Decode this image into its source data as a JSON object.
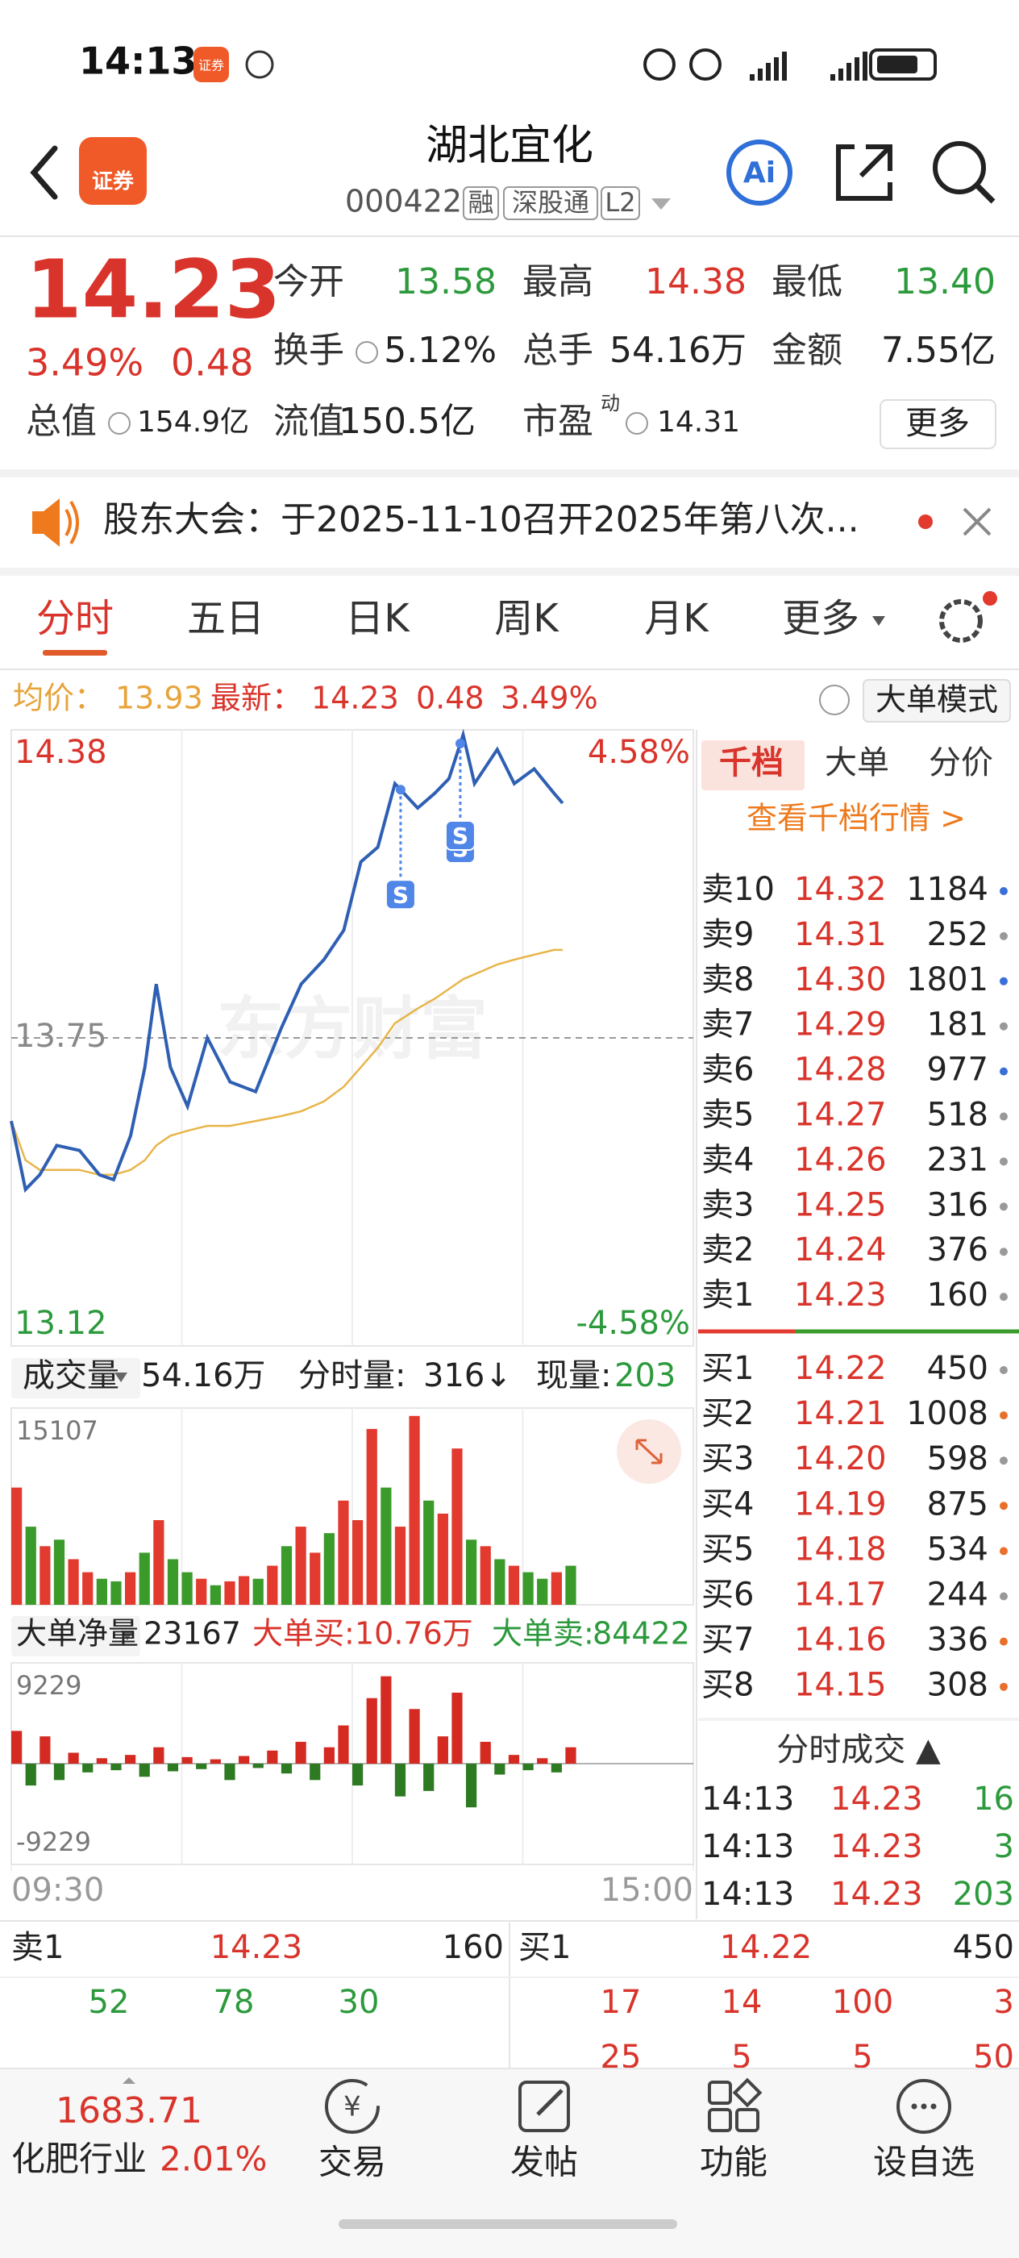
{
  "status_bar": {
    "time": "14:13",
    "app": "证券"
  },
  "header": {
    "title": "湖北宜化",
    "code": "000422",
    "tags": [
      "融",
      "深股通",
      "L2"
    ],
    "app_icon": "证券",
    "ai": "Ai"
  },
  "quote": {
    "price": "14.23",
    "change_pct": "3.49%",
    "change": "0.48",
    "fields": [
      {
        "label": "今开",
        "value": "13.58"
      },
      {
        "label": "最高",
        "value": "14.38"
      },
      {
        "label": "最低",
        "value": "13.40"
      },
      {
        "label": "换手",
        "value": "5.12%"
      },
      {
        "label": "总手",
        "value": "54.16万"
      },
      {
        "label": "金额",
        "value": "7.55亿"
      },
      {
        "label": "总值",
        "value": "154.9亿"
      },
      {
        "label": "流值",
        "value": "150.5亿"
      },
      {
        "label": "市盈",
        "sup": "动",
        "value": "14.31"
      }
    ],
    "more": "更多"
  },
  "notice": "股东大会：于2025-11-10召开2025年第八次...",
  "tabs": [
    "分时",
    "五日",
    "日K",
    "周K",
    "月K",
    "更多"
  ],
  "info": {
    "avg_label": "均价：",
    "avg": "13.93",
    "last_label": "最新：",
    "last": "14.23",
    "change": "0.48",
    "change_pct": "3.49%",
    "mode": "大单模式"
  },
  "chart_data": [
    {
      "type": "line",
      "watermark": "东方财富",
      "xlim": [
        0,
        240
      ],
      "ylim": [
        13.12,
        14.38
      ],
      "yticks": [
        13.12,
        13.75,
        14.38
      ],
      "y2lim": [
        -4.58,
        4.58
      ],
      "y2ticks": [
        {
          "value": -4.58,
          "label": "-4.58%"
        },
        {
          "value": 4.58,
          "label": "4.58%"
        }
      ],
      "xticks": [
        {
          "value": 0,
          "label": "09:30"
        },
        {
          "value": 240,
          "label": "15:00"
        }
      ],
      "series": [
        {
          "color": "#2f5fb3",
          "x": [
            0,
            5,
            10,
            16,
            24,
            31,
            36,
            42,
            47,
            51,
            56,
            62,
            69,
            77,
            86,
            95,
            102,
            110,
            117,
            123,
            129,
            135,
            143,
            149,
            154,
            159,
            163,
            171,
            177,
            184,
            191,
            194
          ],
          "values": [
            13.58,
            13.44,
            13.47,
            13.53,
            13.52,
            13.47,
            13.46,
            13.55,
            13.69,
            13.86,
            13.69,
            13.61,
            13.75,
            13.66,
            13.64,
            13.77,
            13.86,
            13.91,
            13.97,
            14.11,
            14.14,
            14.27,
            14.22,
            14.25,
            14.28,
            14.37,
            14.27,
            14.34,
            14.27,
            14.3,
            14.25,
            14.23
          ]
        },
        {
          "color": "#e8b54a",
          "x": [
            0,
            5,
            10,
            16,
            24,
            31,
            36,
            42,
            47,
            51,
            56,
            62,
            69,
            77,
            86,
            95,
            102,
            110,
            117,
            123,
            129,
            135,
            143,
            149,
            154,
            159,
            163,
            171,
            177,
            184,
            191,
            194
          ],
          "values": [
            13.58,
            13.5,
            13.48,
            13.48,
            13.48,
            13.47,
            13.47,
            13.48,
            13.5,
            13.53,
            13.55,
            13.56,
            13.57,
            13.57,
            13.58,
            13.59,
            13.6,
            13.62,
            13.65,
            13.69,
            13.73,
            13.78,
            13.81,
            13.83,
            13.85,
            13.87,
            13.88,
            13.9,
            13.91,
            13.92,
            13.93,
            13.93
          ]
        }
      ],
      "annotations": [
        {
          "x": 137,
          "label": "S"
        },
        {
          "x": 158,
          "label": "S"
        },
        {
          "x": 158,
          "label": "S"
        }
      ]
    },
    {
      "type": "bar",
      "xlim": [
        0,
        240
      ],
      "ylim": [
        0,
        15107
      ],
      "yticks": [
        15107
      ],
      "x": [
        0,
        5,
        10,
        15,
        20,
        25,
        30,
        35,
        40,
        45,
        50,
        55,
        60,
        65,
        70,
        75,
        80,
        85,
        90,
        95,
        100,
        105,
        110,
        115,
        120,
        125,
        130,
        135,
        140,
        145,
        150,
        155,
        160,
        165,
        170,
        175,
        180,
        185,
        190,
        195
      ],
      "values": [
        9000,
        6000,
        4500,
        5000,
        3500,
        2500,
        2000,
        1800,
        2500,
        4000,
        6500,
        3500,
        2500,
        2000,
        1500,
        1800,
        2200,
        2000,
        3000,
        4500,
        6000,
        4000,
        5500,
        8000,
        6500,
        13500,
        9000,
        6000,
        14500,
        8000,
        7000,
        12000,
        5000,
        4500,
        3500,
        3000,
        2500,
        2000,
        2500,
        3000
      ],
      "colors": [
        "#e23a2e",
        "#3a9a2a",
        "#e23a2e",
        "#3a9a2a",
        "#e23a2e",
        "#e23a2e",
        "#3a9a2a",
        "#3a9a2a",
        "#e23a2e",
        "#3a9a2a",
        "#e23a2e",
        "#3a9a2a",
        "#3a9a2a",
        "#e23a2e",
        "#3a9a2a",
        "#e23a2e",
        "#e23a2e",
        "#3a9a2a",
        "#e23a2e",
        "#3a9a2a",
        "#e23a2e",
        "#e23a2e",
        "#3a9a2a",
        "#e23a2e",
        "#e23a2e",
        "#e23a2e",
        "#3a9a2a",
        "#e23a2e",
        "#e23a2e",
        "#3a9a2a",
        "#e23a2e",
        "#e23a2e",
        "#3a9a2a",
        "#e23a2e",
        "#3a9a2a",
        "#e23a2e",
        "#3a9a2a",
        "#3a9a2a",
        "#e23a2e",
        "#3a9a2a"
      ]
    },
    {
      "type": "bar",
      "xlim": [
        0,
        240
      ],
      "ylim": [
        -9229,
        9229
      ],
      "yticks": [
        -9229,
        9229
      ],
      "up_color": "#d42a22",
      "down_color": "#2d7a22",
      "x": [
        0,
        5,
        10,
        15,
        20,
        25,
        30,
        35,
        40,
        45,
        50,
        55,
        60,
        65,
        70,
        75,
        80,
        85,
        90,
        95,
        100,
        105,
        110,
        115,
        120,
        125,
        130,
        135,
        140,
        145,
        150,
        155,
        160,
        165,
        170,
        175,
        180,
        185,
        190,
        195
      ],
      "values": [
        3000,
        -2000,
        2500,
        -1500,
        1000,
        -800,
        500,
        -600,
        800,
        -1200,
        1500,
        -700,
        600,
        -500,
        400,
        -1500,
        700,
        -400,
        1200,
        -900,
        2000,
        -1500,
        1500,
        3500,
        -2000,
        6000,
        8000,
        -3000,
        5000,
        -2500,
        2500,
        6500,
        -4000,
        2000,
        -1000,
        800,
        -600,
        500,
        -800,
        1500
      ]
    }
  ],
  "volume_header": {
    "label": "成交量",
    "total": "54.16万",
    "minute_label": "分时量:",
    "minute": "316↓",
    "current_label": "现量:",
    "current": "203"
  },
  "net_header": {
    "label": "大单净量",
    "value": "23167",
    "buy_label": "大单买:",
    "buy": "10.76万",
    "sell_label": "大单卖:",
    "sell": "84422"
  },
  "order_book": {
    "tabs": [
      "千档",
      "大单",
      "分价"
    ],
    "link": "查看千档行情 >",
    "asks": [
      {
        "label": "卖10",
        "price": "14.32",
        "volume": "1184",
        "dot": "#3a6fd8"
      },
      {
        "label": "卖9",
        "price": "14.31",
        "volume": "252",
        "dot": "#999999"
      },
      {
        "label": "卖8",
        "price": "14.30",
        "volume": "1801",
        "dot": "#3a6fd8"
      },
      {
        "label": "卖7",
        "price": "14.29",
        "volume": "181",
        "dot": "#999999"
      },
      {
        "label": "卖6",
        "price": "14.28",
        "volume": "977",
        "dot": "#3a6fd8"
      },
      {
        "label": "卖5",
        "price": "14.27",
        "volume": "518",
        "dot": "#999999"
      },
      {
        "label": "卖4",
        "price": "14.26",
        "volume": "231",
        "dot": "#999999"
      },
      {
        "label": "卖3",
        "price": "14.25",
        "volume": "316",
        "dot": "#999999"
      },
      {
        "label": "卖2",
        "price": "14.24",
        "volume": "376",
        "dot": "#999999"
      },
      {
        "label": "卖1",
        "price": "14.23",
        "volume": "160",
        "dot": "#999999"
      }
    ],
    "bids": [
      {
        "label": "买1",
        "price": "14.22",
        "volume": "450",
        "dot": "#999999"
      },
      {
        "label": "买2",
        "price": "14.21",
        "volume": "1008",
        "dot": "#e8702a"
      },
      {
        "label": "买3",
        "price": "14.20",
        "volume": "598",
        "dot": "#999999"
      },
      {
        "label": "买4",
        "price": "14.19",
        "volume": "875",
        "dot": "#e8702a"
      },
      {
        "label": "买5",
        "price": "14.18",
        "volume": "534",
        "dot": "#e8702a"
      },
      {
        "label": "买6",
        "price": "14.17",
        "volume": "244",
        "dot": "#999999"
      },
      {
        "label": "买7",
        "price": "14.16",
        "volume": "336",
        "dot": "#e8702a"
      },
      {
        "label": "买8",
        "price": "14.15",
        "volume": "308",
        "dot": "#e8702a"
      }
    ]
  },
  "trades": {
    "title": "分时成交 ▲",
    "rows": [
      [
        "14:13",
        "14.23",
        "16"
      ],
      [
        "14:13",
        "14.23",
        "3"
      ],
      [
        "14:13",
        "14.23",
        "203"
      ]
    ]
  },
  "bottom_quotes": {
    "ask": {
      "label": "卖1",
      "price": "14.23",
      "volume": "160",
      "orders": [
        "52",
        "78",
        "30"
      ]
    },
    "bid": {
      "label": "买1",
      "price": "14.22",
      "volume": "450",
      "orders": [
        "17",
        "14",
        "100",
        "3"
      ],
      "more": [
        "25",
        "5",
        "5",
        "50"
      ]
    }
  },
  "nav": {
    "index_value": "1683.71",
    "index_name": "化肥行业",
    "index_change": "2.01%",
    "items": [
      "交易",
      "发帖",
      "功能",
      "设自选"
    ],
    "trade_icon": "¥"
  }
}
